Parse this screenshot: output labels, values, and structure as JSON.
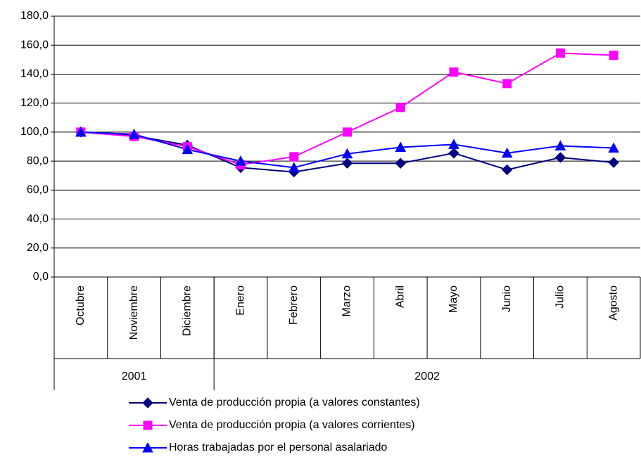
{
  "chart_data": {
    "type": "line",
    "categories": [
      "Octubre",
      "Noviembre",
      "Diciembre",
      "Enero",
      "Febrero",
      "Marzo",
      "Abril",
      "Mayo",
      "Junio",
      "Julio",
      "Agosto"
    ],
    "groups": [
      {
        "label": "2001",
        "span": 3
      },
      {
        "label": "2002",
        "span": 8
      }
    ],
    "series": [
      {
        "name": "Venta de producción propia (a valores constantes)",
        "color": "#000080",
        "marker": "diamond",
        "values": [
          100,
          97.5,
          91,
          75.5,
          72.5,
          78.5,
          78.5,
          85.5,
          74,
          82.5,
          79
        ]
      },
      {
        "name": "Venta de producción propia (a valores corrientes)",
        "color": "#ff00ff",
        "marker": "square",
        "values": [
          100,
          97,
          90,
          77.5,
          83,
          100,
          117,
          141.5,
          133.5,
          154.5,
          153
        ]
      },
      {
        "name": "Horas trabajadas por el personal asalariado",
        "color": "#0000ff",
        "marker": "triangle",
        "values": [
          100,
          98.5,
          88,
          80,
          75.5,
          85,
          89.5,
          91.5,
          85.5,
          90.5,
          89
        ]
      }
    ],
    "ylim": [
      0,
      180
    ],
    "yticks": [
      {
        "value": 0,
        "label": "0,0"
      },
      {
        "value": 20,
        "label": "20,0"
      },
      {
        "value": 40,
        "label": "40,0"
      },
      {
        "value": 60,
        "label": "60,0"
      },
      {
        "value": 80,
        "label": "80,0"
      },
      {
        "value": 100,
        "label": "100,0"
      },
      {
        "value": 120,
        "label": "120,0"
      },
      {
        "value": 140,
        "label": "140,0"
      },
      {
        "value": 160,
        "label": "160,0"
      },
      {
        "value": 180,
        "label": "180,0"
      }
    ],
    "grid": true,
    "legend": "bottom"
  }
}
